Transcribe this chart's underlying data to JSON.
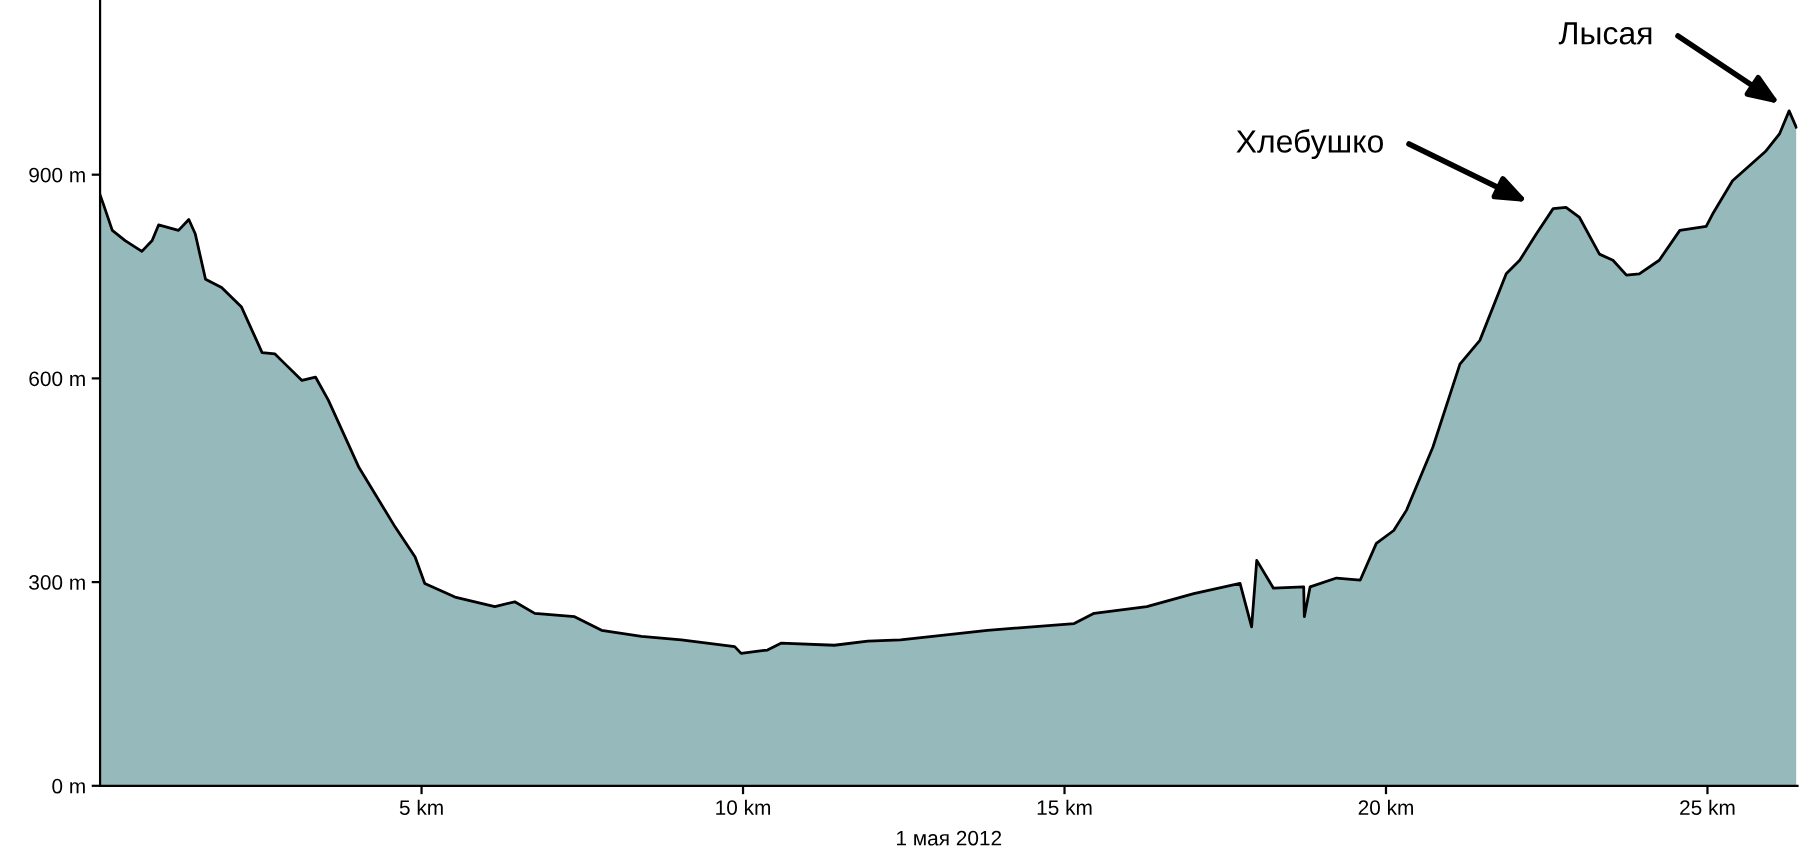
{
  "chart_data": {
    "type": "area",
    "xlabel": "1 мая 2012",
    "x": [
      0,
      0.05,
      0.19,
      0.39,
      0.65,
      0.81,
      0.91,
      1.22,
      1.38,
      1.48,
      1.64,
      1.89,
      2.2,
      2.52,
      2.72,
      2.88,
      3.14,
      3.35,
      3.55,
      4.02,
      4.59,
      4.9,
      5.05,
      5.52,
      6.14,
      6.45,
      6.76,
      7.38,
      7.8,
      8.42,
      9.04,
      9.87,
      9.97,
      10.38,
      10.59,
      11.42,
      11.94,
      12.45,
      13.8,
      15.15,
      15.46,
      16.28,
      17.01,
      17.73,
      17.91,
      17.99,
      18.25,
      18.72,
      18.73,
      18.82,
      19.23,
      19.6,
      19.85,
      20.12,
      20.32,
      20.73,
      21.15,
      21.46,
      21.87,
      22.08,
      22.34,
      22.6,
      22.8,
      23.01,
      23.32,
      23.53,
      23.74,
      23.94,
      24.25,
      24.57,
      24.98,
      25.08,
      25.39,
      25.91,
      26.12,
      26.27,
      26.38
    ],
    "series": [
      {
        "color": "#96babb",
        "values": [
          870,
          857,
          818,
          803,
          787,
          803,
          826,
          818,
          834,
          813,
          746,
          734,
          705,
          638,
          636,
          621,
          597,
          602,
          568,
          470,
          381,
          337,
          298,
          278,
          264,
          271,
          254,
          249,
          229,
          220,
          215,
          205,
          195,
          200,
          210,
          207,
          213,
          215,
          229,
          239,
          254,
          264,
          283,
          298,
          234,
          332,
          291,
          293,
          249,
          293,
          306,
          303,
          357,
          376,
          406,
          499,
          621,
          656,
          754,
          774,
          813,
          850,
          852,
          837,
          783,
          774,
          752,
          754,
          774,
          818,
          824,
          842,
          891,
          935,
          960,
          994,
          970
        ]
      }
    ],
    "xlim": [
      0,
      26.4
    ],
    "ylim": [
      0,
      1156
    ],
    "xticks": [
      {
        "value": 5,
        "label": "5 km"
      },
      {
        "value": 10,
        "label": "10 km"
      },
      {
        "value": 15,
        "label": "15 km"
      },
      {
        "value": 20,
        "label": "20 km"
      },
      {
        "value": 25,
        "label": "25 km"
      }
    ],
    "yticks": [
      {
        "value": 0,
        "label": "0 m"
      },
      {
        "value": 300,
        "label": "300 m"
      },
      {
        "value": 600,
        "label": "600 m"
      },
      {
        "value": 900,
        "label": "900 m"
      }
    ],
    "grid": false,
    "annotations": [
      "Хлебушко",
      "Лысая"
    ]
  }
}
